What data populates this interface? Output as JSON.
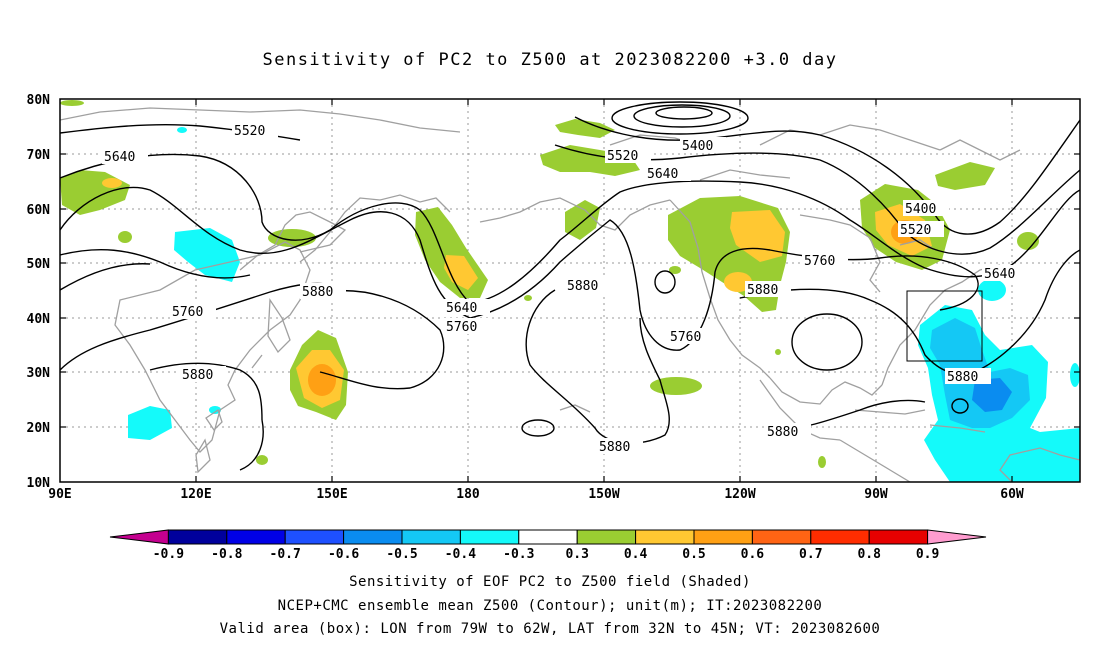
{
  "title": "Sensitivity of PC2 to Z500 at 2023082200 +3.0 day",
  "lat_labels": [
    "80N",
    "70N",
    "60N",
    "50N",
    "40N",
    "30N",
    "20N",
    "10N"
  ],
  "lon_labels": [
    "90E",
    "120E",
    "150E",
    "180",
    "150W",
    "120W",
    "90W",
    "60W"
  ],
  "contour_labels": [
    "5520",
    "5640",
    "5400",
    "5520",
    "5640",
    "5400",
    "5520",
    "5760",
    "5640",
    "5760",
    "5880",
    "5640",
    "5760",
    "5880",
    "5880",
    "5760",
    "5880",
    "5880",
    "5880",
    "5880"
  ],
  "colorbar": {
    "labels": [
      "-0.9",
      "-0.8",
      "-0.7",
      "-0.6",
      "-0.5",
      "-0.4",
      "-0.3",
      "0.3",
      "0.4",
      "0.5",
      "0.6",
      "0.7",
      "0.8",
      "0.9"
    ],
    "colors": [
      "#c4008f",
      "#00009c",
      "#0000e6",
      "#1e50ff",
      "#0a8cf0",
      "#14c8f5",
      "#14fafa",
      "#ffffff",
      "#9acd32",
      "#ffc832",
      "#ffa014",
      "#ff6414",
      "#ff2d00",
      "#e60000",
      "#ff9ccf"
    ]
  },
  "captions": {
    "line1": "Sensitivity of EOF PC2 to Z500 field (Shaded)",
    "line2": "NCEP+CMC ensemble mean Z500 (Contour); unit(m); IT:2023082200",
    "line3": "Valid area (box): LON from 79W to 62W, LAT from 32N to 45N; VT: 2023082600"
  }
}
